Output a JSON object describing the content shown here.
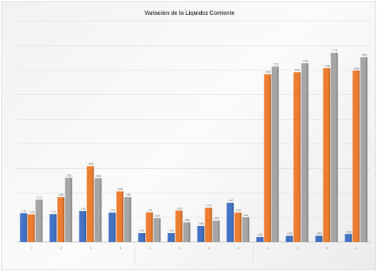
{
  "chart_data": {
    "type": "bar",
    "title": "Variación de la Liquidez Corriente",
    "xlabel": "",
    "ylabel": "",
    "ylim": [
      0,
      9
    ],
    "grid": true,
    "legend_position": "bottom",
    "groups": [
      {
        "name": "",
        "categories": [
          "1",
          "2",
          "3",
          "4"
        ]
      },
      {
        "name": "",
        "categories": [
          "1",
          "2",
          "3",
          "4"
        ]
      },
      {
        "name": "",
        "categories": [
          "1",
          "2",
          "3",
          "4"
        ]
      }
    ],
    "series": [
      {
        "name": "",
        "color": "#4472c4",
        "values": [
          1.17,
          1.14,
          1.26,
          1.2,
          0.37,
          0.37,
          0.66,
          1.6,
          0.2,
          0.26,
          0.26,
          0.33
        ]
      },
      {
        "name": "",
        "color": "#ed7d31",
        "values": [
          1.13,
          1.83,
          3.09,
          2.06,
          1.21,
          1.28,
          1.4,
          1.2,
          6.84,
          6.92,
          7.08,
          6.98
        ]
      },
      {
        "name": "",
        "color": "#a5a5a5",
        "values": [
          1.73,
          2.62,
          2.6,
          1.83,
          0.97,
          0.8,
          0.87,
          1.01,
          7.15,
          7.28,
          7.71,
          7.53
        ]
      }
    ],
    "data_labels": [
      [
        "1.17",
        "1.14",
        "1.26",
        "1.20",
        "0.37",
        "0.37",
        "0.66",
        "1.60",
        "0.20",
        "0.26",
        "0.26",
        "0.33"
      ],
      [
        "1.13",
        "1.83",
        "3.09",
        "2.06",
        "1.21",
        "1.28",
        "1.40",
        "1.20",
        "6.84",
        "6.92",
        "7.08",
        "6.98"
      ],
      [
        "1.73",
        "2.62",
        "2.60",
        "1.83",
        "0.97",
        "0.80",
        "0.87",
        "1.01",
        "7.15",
        "7.28",
        "7.71",
        "7.53"
      ]
    ]
  }
}
